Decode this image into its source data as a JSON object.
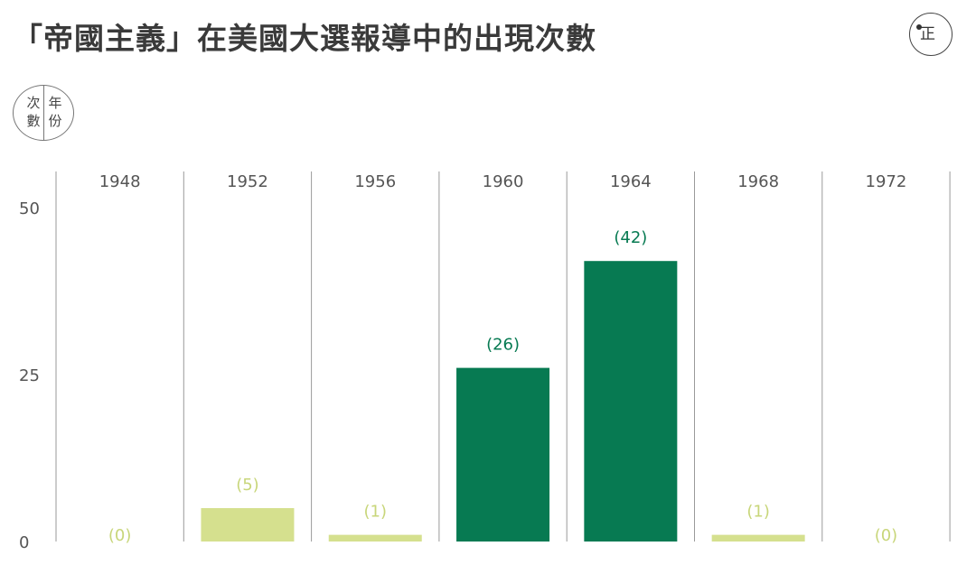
{
  "title": "「帝國主義」在美國大選報導中的出現次數",
  "logo": {
    "glyph": "正"
  },
  "key": {
    "left": "次數",
    "right": "年份"
  },
  "colors": {
    "high": "#077a52",
    "low": "#d5e08e",
    "label_high": "#077a52",
    "label_low": "#c8d67a",
    "grid": "#9a9a9a",
    "text": "#555555"
  },
  "chart_data": {
    "type": "bar",
    "categories": [
      "1948",
      "1952",
      "1956",
      "1960",
      "1964",
      "1968",
      "1972"
    ],
    "values": [
      0,
      5,
      1,
      26,
      42,
      1,
      0
    ],
    "data_labels": [
      "(0)",
      "(5)",
      "(1)",
      "(26)",
      "(42)",
      "(1)",
      "(0)"
    ],
    "highlight": [
      false,
      false,
      false,
      true,
      true,
      false,
      false
    ],
    "yticks": [
      0,
      25,
      50
    ],
    "ylim": [
      0,
      50
    ],
    "xlabel": "",
    "ylabel": "",
    "grid": "vertical separators between years",
    "legend": "none"
  }
}
